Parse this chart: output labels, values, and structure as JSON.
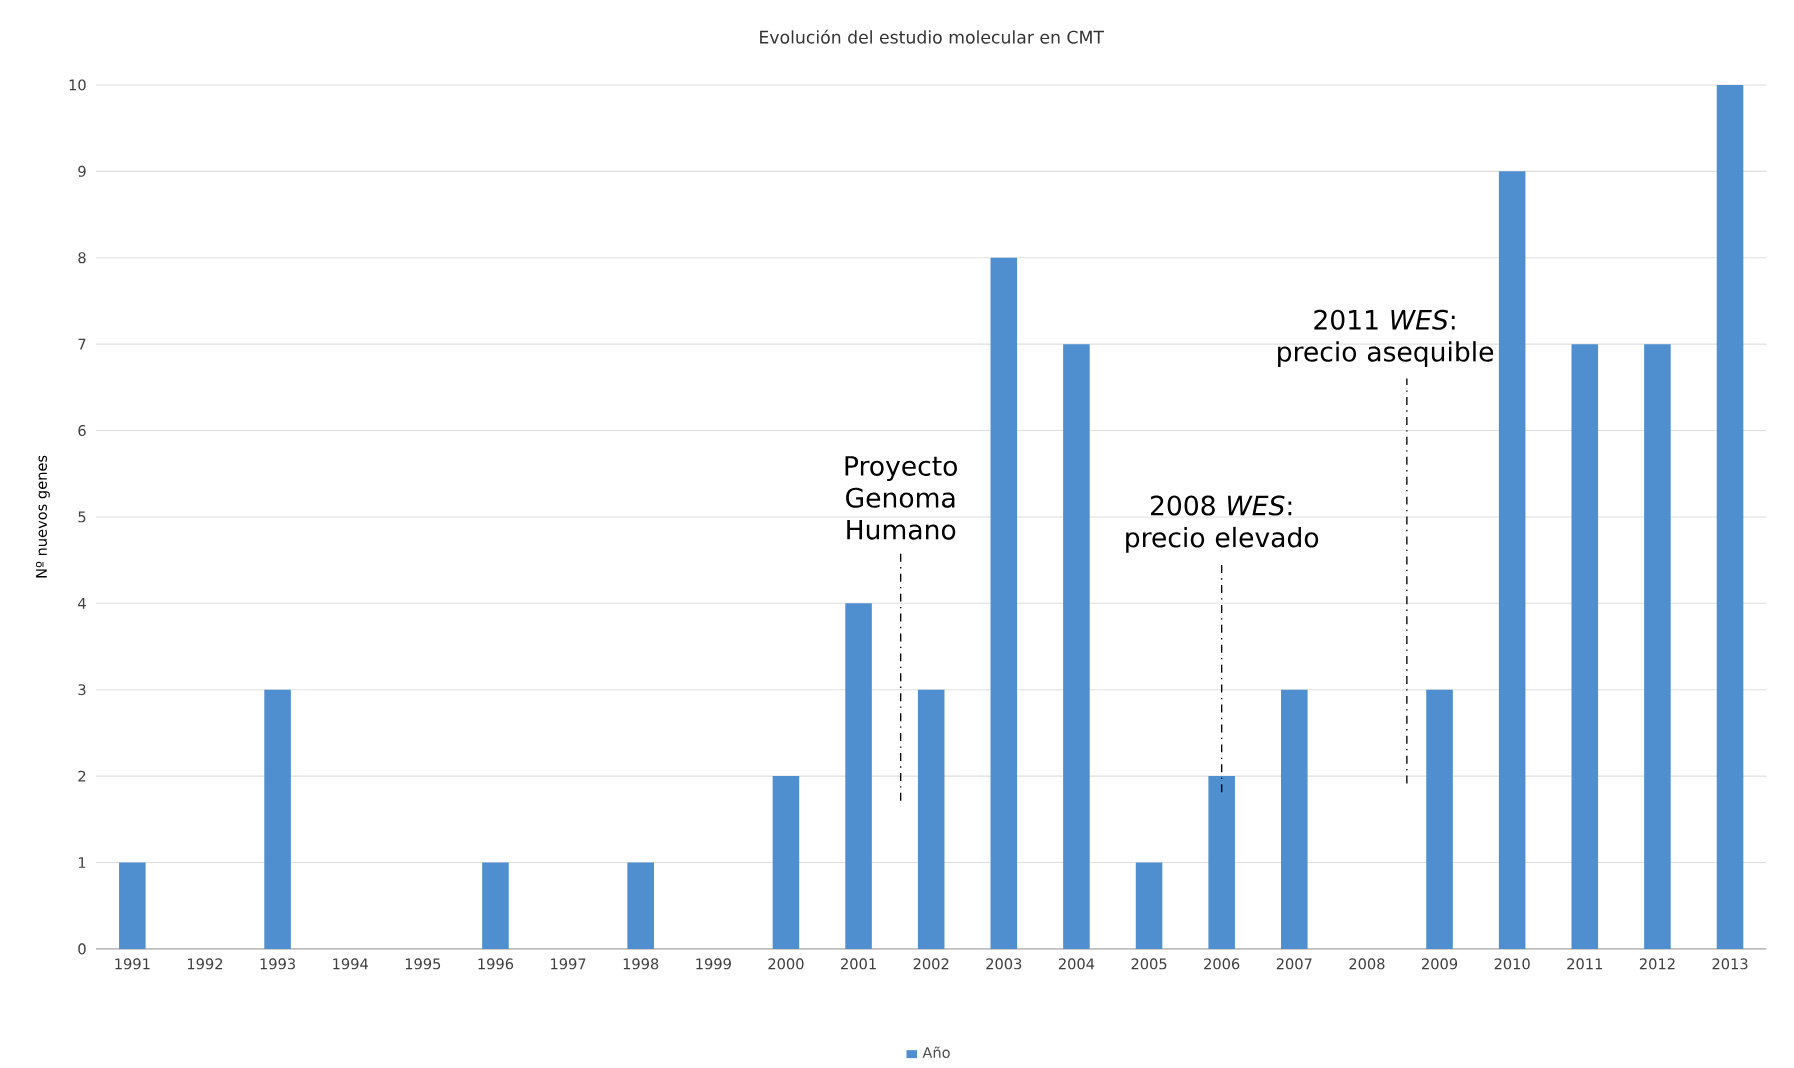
{
  "chart_data": {
    "type": "bar",
    "title": "Evolución del estudio molecular en CMT",
    "ylabel": "Nº nuevos genes",
    "categories": [
      "1991",
      "1992",
      "1993",
      "1994",
      "1995",
      "1996",
      "1997",
      "1998",
      "1999",
      "2000",
      "2001",
      "2002",
      "2003",
      "2004",
      "2005",
      "2006",
      "2007",
      "2008",
      "2009",
      "2010",
      "2011",
      "2012",
      "2013"
    ],
    "series": [
      {
        "name": "Año",
        "color": "#4f8fcf",
        "values": [
          1,
          0,
          3,
          0,
          0,
          1,
          0,
          1,
          0,
          2,
          4,
          3,
          8,
          7,
          1,
          2,
          3,
          0,
          3,
          9,
          7,
          7,
          10
        ]
      }
    ],
    "ylim": [
      0,
      10
    ],
    "yticks": [
      0,
      1,
      2,
      3,
      4,
      5,
      6,
      7,
      8,
      9,
      10
    ],
    "grid": "y",
    "legend": "bottom",
    "annotations": [
      "Proyecto Genoma Humano",
      "2008 *WES*: precio elevado",
      "2011 *WES*: precio asequible"
    ]
  }
}
